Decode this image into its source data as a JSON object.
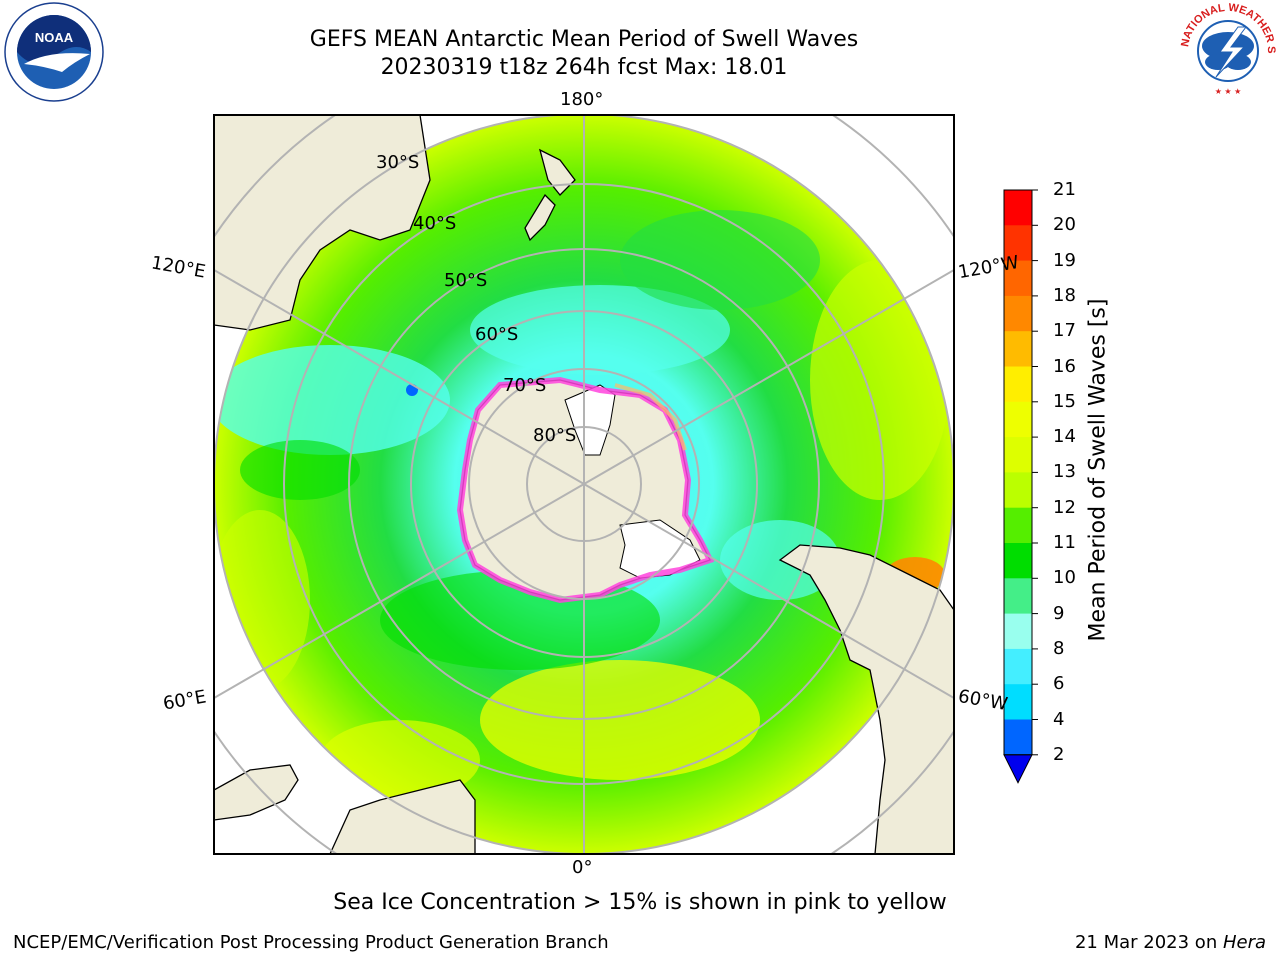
{
  "header": {
    "title_line1": "GEFS MEAN Antarctic Mean Period of Swell Waves",
    "title_line2": "20230319 t18z 264h fcst   Max: 18.01"
  },
  "logos": {
    "left": "noaa-logo",
    "right": "nws-logo"
  },
  "map": {
    "projection": "south-polar-stereographic",
    "meridian_labels": {
      "top": "180°",
      "bottom": "0°",
      "upper_left": "120°E",
      "upper_right": "120°W",
      "lower_left": "60°E",
      "lower_right": "60°W"
    },
    "latitude_labels": [
      "30°S",
      "40°S",
      "50°S",
      "60°S",
      "70°S",
      "80°S"
    ],
    "colors": {
      "land": "#efecd9",
      "ice_sheet": "#ffffff",
      "grid": "#b3b3b3",
      "sea_ice": "#ff44dd"
    }
  },
  "colorbar": {
    "title": "Mean Period of Swell Waves [s]",
    "ticks": [
      "21",
      "20",
      "19",
      "18",
      "17",
      "16",
      "15",
      "14",
      "13",
      "12",
      "11",
      "10",
      "9",
      "8",
      "6",
      "4",
      "2"
    ],
    "levels": [
      {
        "from": 2,
        "to": 4,
        "color": "#0066ff"
      },
      {
        "from": 4,
        "to": 6,
        "color": "#00ddff"
      },
      {
        "from": 6,
        "to": 8,
        "color": "#44eeff"
      },
      {
        "from": 8,
        "to": 9,
        "color": "#99ffee"
      },
      {
        "from": 9,
        "to": 10,
        "color": "#44ee88"
      },
      {
        "from": 10,
        "to": 11,
        "color": "#00dd00"
      },
      {
        "from": 11,
        "to": 12,
        "color": "#55ee00"
      },
      {
        "from": 12,
        "to": 13,
        "color": "#bbff00"
      },
      {
        "from": 13,
        "to": 14,
        "color": "#ddff00"
      },
      {
        "from": 14,
        "to": 15,
        "color": "#eeff00"
      },
      {
        "from": 15,
        "to": 16,
        "color": "#ffee00"
      },
      {
        "from": 16,
        "to": 17,
        "color": "#ffbb00"
      },
      {
        "from": 17,
        "to": 18,
        "color": "#ff8800"
      },
      {
        "from": 18,
        "to": 19,
        "color": "#ff6600"
      },
      {
        "from": 19,
        "to": 20,
        "color": "#ff3300"
      },
      {
        "from": 20,
        "to": 21,
        "color": "#ff0000"
      }
    ],
    "extend_below_color": "#0000ee"
  },
  "note": "Sea Ice Concentration > 15% is shown in pink to yellow",
  "footer": {
    "left": "NCEP/EMC/Verification Post Processing Product Generation Branch",
    "date": "21 Mar 2023 on ",
    "host": "Hera"
  }
}
